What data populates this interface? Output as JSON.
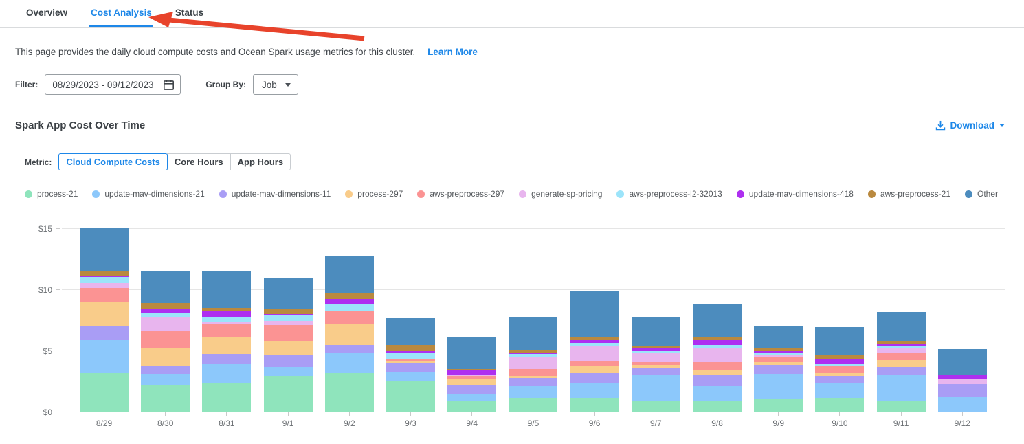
{
  "tabs": {
    "items": [
      {
        "label": "Overview",
        "active": false
      },
      {
        "label": "Cost Analysis",
        "active": true
      },
      {
        "label": "Status",
        "active": false
      }
    ]
  },
  "annotation": {
    "arrow_color": "#e8432b",
    "target": "Cost Analysis tab"
  },
  "description": {
    "text": "This page provides the daily cloud compute costs and Ocean Spark usage metrics for this cluster.",
    "link": "Learn More"
  },
  "filters": {
    "filter_label": "Filter:",
    "date_range": "08/29/2023 - 09/12/2023",
    "group_by_label": "Group By:",
    "group_by_value": "Job"
  },
  "section": {
    "title": "Spark App Cost Over Time",
    "download_label": "Download"
  },
  "metric": {
    "label": "Metric:",
    "options": [
      {
        "label": "Cloud Compute Costs",
        "active": true
      },
      {
        "label": "Core Hours",
        "active": false
      },
      {
        "label": "App Hours",
        "active": false
      }
    ]
  },
  "colors": {
    "accent_blue": "#1d87e8",
    "arrow_red": "#e8432b",
    "axis_text": "#6b6f73",
    "gridline": "#e5e5e5"
  },
  "chart_data": {
    "type": "bar",
    "stacked": true,
    "title": "Spark App Cost Over Time",
    "xlabel": "",
    "ylabel": "Cloud Compute Costs ($)",
    "ylim": [
      0,
      15
    ],
    "yticks": [
      {
        "label": "$0",
        "value": 0
      },
      {
        "label": "$5",
        "value": 5
      },
      {
        "label": "$10",
        "value": 10
      },
      {
        "label": "$15",
        "value": 15
      }
    ],
    "grid": true,
    "legend_position": "top",
    "categories": [
      "8/29",
      "8/30",
      "8/31",
      "9/1",
      "9/2",
      "9/3",
      "9/4",
      "9/5",
      "9/6",
      "9/7",
      "9/8",
      "9/9",
      "9/10",
      "9/11",
      "9/12"
    ],
    "series": [
      {
        "name": "process-21",
        "color": "#8fe4bc",
        "values": [
          3.2,
          2.2,
          2.35,
          2.95,
          3.2,
          2.45,
          0.85,
          1.15,
          1.15,
          0.9,
          0.9,
          1.05,
          1.1,
          0.9,
          0
        ]
      },
      {
        "name": "update-mav-dimensions-21",
        "color": "#8cc8fb",
        "values": [
          2.7,
          0.9,
          1.6,
          0.7,
          1.55,
          0.8,
          0.6,
          1.0,
          1.2,
          2.15,
          1.2,
          2.05,
          1.25,
          2.1,
          1.2
        ]
      },
      {
        "name": "update-mav-dimensions-11",
        "color": "#a99df5",
        "values": [
          1.1,
          0.6,
          0.75,
          0.95,
          0.7,
          0.75,
          0.75,
          0.6,
          0.85,
          0.55,
          0.95,
          0.7,
          0.55,
          0.65,
          1.05
        ]
      },
      {
        "name": "process-297",
        "color": "#f9cc8a",
        "values": [
          2.0,
          1.5,
          1.35,
          1.2,
          1.75,
          0.17,
          0.45,
          0.2,
          0.5,
          0.2,
          0.35,
          0.25,
          0.3,
          0.55,
          0
        ]
      },
      {
        "name": "aws-preprocess-297",
        "color": "#fb9393",
        "values": [
          1.1,
          1.45,
          1.15,
          1.3,
          1.05,
          0.17,
          0.25,
          0.55,
          0.45,
          0.3,
          0.65,
          0.4,
          0.5,
          0.55,
          0
        ]
      },
      {
        "name": "generate-sp-pricing",
        "color": "#e8b5ee",
        "values": [
          0.4,
          1.1,
          0.1,
          0.3,
          0,
          0,
          0.1,
          1.0,
          1.25,
          0.75,
          1.2,
          0.2,
          0,
          0.45,
          0.4
        ]
      },
      {
        "name": "aws-preprocess-l2-32013",
        "color": "#9ce4fa",
        "values": [
          0.5,
          0.35,
          0.45,
          0.45,
          0.5,
          0.5,
          0,
          0.2,
          0.2,
          0.15,
          0.2,
          0.15,
          0.2,
          0.12,
          0
        ]
      },
      {
        "name": "update-mav-dimensions-418",
        "color": "#ae2ff0",
        "values": [
          0.15,
          0.25,
          0.45,
          0.15,
          0.45,
          0.15,
          0.35,
          0.12,
          0.3,
          0.15,
          0.45,
          0.2,
          0.45,
          0.2,
          0.35
        ]
      },
      {
        "name": "aws-preprocess-21",
        "color": "#b9893f",
        "values": [
          0.35,
          0.55,
          0.3,
          0.45,
          0.45,
          0.45,
          0.15,
          0.25,
          0.2,
          0.25,
          0.25,
          0.25,
          0.25,
          0.25,
          0
        ]
      },
      {
        "name": "Other",
        "color": "#4c8cbe",
        "values": [
          3.5,
          2.6,
          2.95,
          2.45,
          3.05,
          2.25,
          2.6,
          2.7,
          3.8,
          2.35,
          2.6,
          1.8,
          2.3,
          2.4,
          2.1
        ]
      }
    ]
  }
}
